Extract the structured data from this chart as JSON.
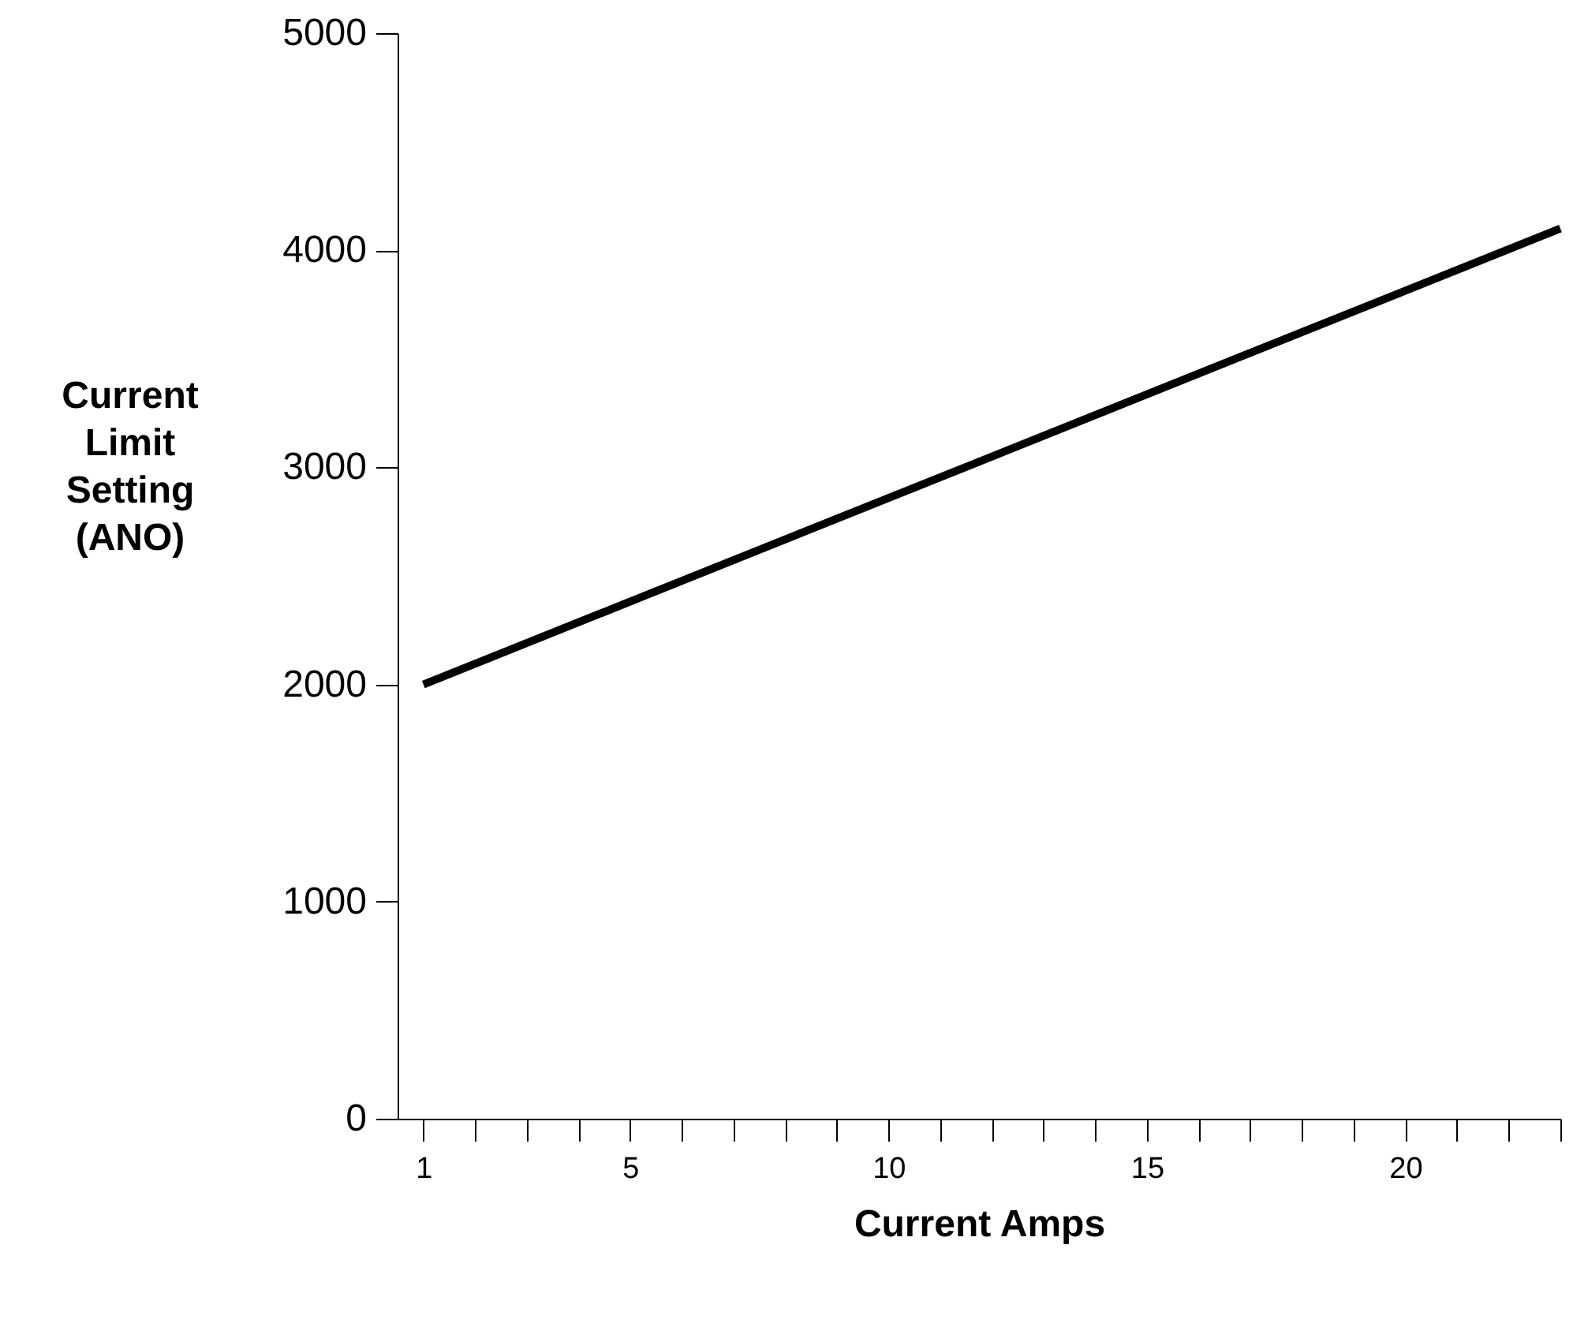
{
  "chart_data": {
    "type": "line",
    "xlabel": "Current Amps",
    "ylabel": "Current Limit Setting (ANO)",
    "x": [
      1,
      23
    ],
    "series": [
      {
        "color": "#000000",
        "values": [
          2000,
          4100
        ]
      }
    ],
    "xlim": [
      0.5,
      23
    ],
    "ylim": [
      0,
      5000
    ],
    "xticks": [
      1,
      {
        "value": 2,
        "label": null
      },
      {
        "value": 3,
        "label": null
      },
      {
        "value": 4,
        "label": null
      },
      5,
      {
        "value": 6,
        "label": null
      },
      {
        "value": 7,
        "label": null
      },
      {
        "value": 8,
        "label": null
      },
      {
        "value": 9,
        "label": null
      },
      10,
      {
        "value": 11,
        "label": null
      },
      {
        "value": 12,
        "label": null
      },
      {
        "value": 13,
        "label": null
      },
      {
        "value": 14,
        "label": null
      },
      15,
      {
        "value": 16,
        "label": null
      },
      {
        "value": 17,
        "label": null
      },
      {
        "value": 18,
        "label": null
      },
      {
        "value": 19,
        "label": null
      },
      20,
      {
        "value": 21,
        "label": null
      },
      {
        "value": 22,
        "label": null
      },
      {
        "value": 23,
        "label": null
      }
    ],
    "yticks": [
      0,
      1000,
      2000,
      3000,
      4000,
      5000
    ],
    "grid": false,
    "marker": "none",
    "line_style": "solid"
  }
}
